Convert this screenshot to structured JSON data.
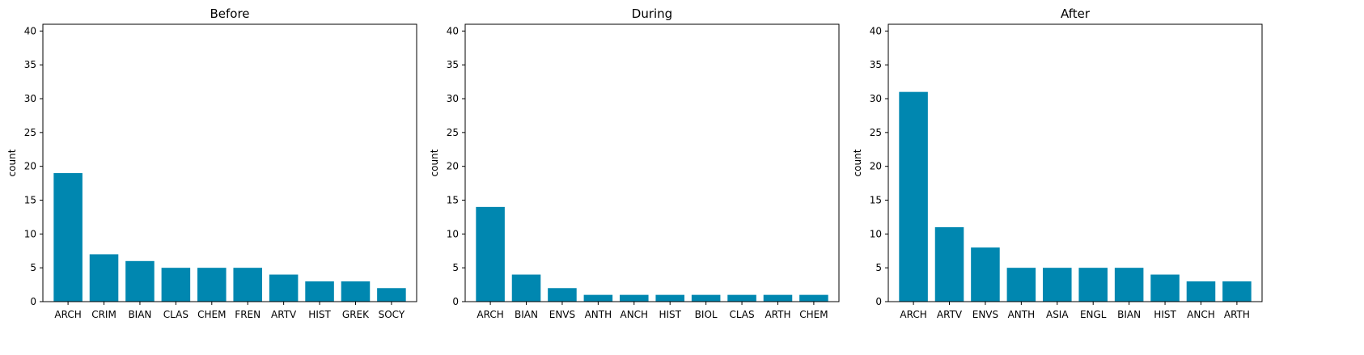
{
  "colors": {
    "bar": "#0087b0",
    "axis": "#000000",
    "background": "#ffffff"
  },
  "chart_data": [
    {
      "type": "bar",
      "title": "Before",
      "xlabel": "",
      "ylabel": "count",
      "ylim": [
        0,
        41
      ],
      "yticks": [
        0,
        5,
        10,
        15,
        20,
        25,
        30,
        35,
        40
      ],
      "grid": false,
      "categories": [
        "ARCH",
        "CRIM",
        "BIAN",
        "CLAS",
        "CHEM",
        "FREN",
        "ARTV",
        "HIST",
        "GREK",
        "SOCY"
      ],
      "values": [
        19,
        7,
        6,
        5,
        5,
        5,
        4,
        3,
        3,
        2
      ]
    },
    {
      "type": "bar",
      "title": "During",
      "xlabel": "",
      "ylabel": "count",
      "ylim": [
        0,
        41
      ],
      "yticks": [
        0,
        5,
        10,
        15,
        20,
        25,
        30,
        35,
        40
      ],
      "grid": false,
      "categories": [
        "ARCH",
        "BIAN",
        "ENVS",
        "ANTH",
        "ANCH",
        "HIST",
        "BIOL",
        "CLAS",
        "ARTH",
        "CHEM"
      ],
      "values": [
        14,
        4,
        2,
        1,
        1,
        1,
        1,
        1,
        1,
        1
      ]
    },
    {
      "type": "bar",
      "title": "After",
      "xlabel": "",
      "ylabel": "count",
      "ylim": [
        0,
        41
      ],
      "yticks": [
        0,
        5,
        10,
        15,
        20,
        25,
        30,
        35,
        40
      ],
      "grid": false,
      "categories": [
        "ARCH",
        "ARTV",
        "ENVS",
        "ANTH",
        "ASIA",
        "ENGL",
        "BIAN",
        "HIST",
        "ANCH",
        "ARTH"
      ],
      "values": [
        31,
        11,
        8,
        5,
        5,
        5,
        5,
        4,
        3,
        3
      ]
    }
  ]
}
